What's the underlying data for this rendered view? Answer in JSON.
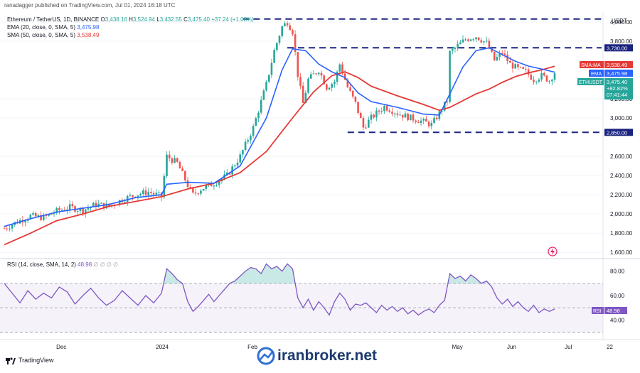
{
  "header": {
    "text": "ranadagger published on TradingView.com, Jul 01, 2024 16:18 UTC"
  },
  "legend": {
    "symbol_line": "Ethereum / TetherUS, 1D, BINANCE",
    "ohlc": {
      "o_label": "O",
      "o": "3,438.16",
      "h_label": "H",
      "h": "3,524.94",
      "l_label": "L",
      "l": "3,432.55",
      "c_label": "C",
      "c": "3,475.40",
      "change": "+37.24 (+1.08%)"
    },
    "ema_text": "EMA (20, close, 0, SMA, 5)",
    "ema_value": "3,475.98",
    "sma_text": "SMA (50, close, 0, SMA, 5)",
    "sma_value": "3,538.49"
  },
  "rsi_legend": {
    "text": "RSI (14, close, SMA, 14, 2)",
    "value": "48.98",
    "extras": "∅ ∅ ∅ ∅"
  },
  "price_axis": {
    "currency": "USDT",
    "ticks": [
      "4,000.00",
      "3,800.00",
      "3,200.00",
      "3,000.00",
      "2,600.00",
      "2,400.00",
      "2,200.00",
      "2,000.00",
      "1,800.00",
      "1,600.00"
    ],
    "tick_values": [
      4000,
      3800,
      3200,
      3000,
      2600,
      2400,
      2200,
      2000,
      1800,
      1600
    ]
  },
  "rsi_axis": {
    "ticks": [
      "80.00",
      "60.00",
      "40.00"
    ],
    "tick_values": [
      80,
      60,
      40
    ]
  },
  "time_axis": {
    "labels": [
      "Dec",
      "2024",
      "Feb",
      "May",
      "Jun",
      "Jul",
      "22"
    ]
  },
  "tags": {
    "resistance": "3,730.00",
    "sma_label": "SMA:MA",
    "sma_value": "3,538.49",
    "ema_label": "EMA",
    "ema_value": "3,475.98",
    "symbol": "ETHUSDT",
    "price": "3,475.40",
    "change": "+82.82%",
    "countdown": "07:41:44",
    "support": "2,850.00",
    "rsi_label": "RSI",
    "rsi_value": "48.98"
  },
  "footer": {
    "tv_logo": "TradingView",
    "watermark": "iranbroker.net"
  },
  "colors": {
    "up": "#26a69a",
    "down": "#ef5350",
    "ema": "#2962ff",
    "sma": "#e53935",
    "rsi": "#7e57c2",
    "level": "#1a237e"
  },
  "chart_data": {
    "type": "candlestick",
    "title": "Ethereum / TetherUS, 1D, BINANCE",
    "ylim": [
      1550,
      4080
    ],
    "horizontal_levels": [
      3730,
      2850
    ],
    "last_price": 3475.4,
    "price_path": [
      [
        0,
        1850
      ],
      [
        5,
        1920
      ],
      [
        10,
        1980
      ],
      [
        15,
        1960
      ],
      [
        20,
        2030
      ],
      [
        25,
        2070
      ],
      [
        30,
        2040
      ],
      [
        35,
        2100
      ],
      [
        40,
        2080
      ],
      [
        45,
        2150
      ],
      [
        50,
        2200
      ],
      [
        55,
        2230
      ],
      [
        60,
        2180
      ],
      [
        62,
        2600
      ],
      [
        66,
        2530
      ],
      [
        70,
        2300
      ],
      [
        72,
        2200
      ],
      [
        75,
        2260
      ],
      [
        80,
        2320
      ],
      [
        85,
        2400
      ],
      [
        90,
        2600
      ],
      [
        95,
        2900
      ],
      [
        100,
        3350
      ],
      [
        103,
        3700
      ],
      [
        106,
        3950
      ],
      [
        108,
        4000
      ],
      [
        110,
        3900
      ],
      [
        112,
        3450
      ],
      [
        114,
        3150
      ],
      [
        116,
        3400
      ],
      [
        120,
        3500
      ],
      [
        123,
        3320
      ],
      [
        126,
        3380
      ],
      [
        128,
        3560
      ],
      [
        131,
        3320
      ],
      [
        134,
        3150
      ],
      [
        137,
        2900
      ],
      [
        140,
        3000
      ],
      [
        145,
        3120
      ],
      [
        150,
        3050
      ],
      [
        155,
        3000
      ],
      [
        160,
        2960
      ],
      [
        163,
        2930
      ],
      [
        166,
        3050
      ],
      [
        169,
        3180
      ],
      [
        170,
        3680
      ],
      [
        173,
        3750
      ],
      [
        176,
        3820
      ],
      [
        180,
        3850
      ],
      [
        184,
        3780
      ],
      [
        187,
        3600
      ],
      [
        190,
        3680
      ],
      [
        193,
        3560
      ],
      [
        196,
        3510
      ],
      [
        199,
        3480
      ],
      [
        202,
        3400
      ],
      [
        205,
        3440
      ],
      [
        208,
        3390
      ],
      [
        210,
        3475
      ]
    ],
    "ema20": [
      [
        0,
        1870
      ],
      [
        10,
        1950
      ],
      [
        20,
        2020
      ],
      [
        30,
        2060
      ],
      [
        40,
        2100
      ],
      [
        50,
        2170
      ],
      [
        60,
        2200
      ],
      [
        62,
        2310
      ],
      [
        70,
        2330
      ],
      [
        80,
        2320
      ],
      [
        90,
        2500
      ],
      [
        100,
        3000
      ],
      [
        106,
        3500
      ],
      [
        110,
        3720
      ],
      [
        115,
        3700
      ],
      [
        120,
        3560
      ],
      [
        125,
        3480
      ],
      [
        130,
        3420
      ],
      [
        135,
        3260
      ],
      [
        140,
        3170
      ],
      [
        150,
        3110
      ],
      [
        160,
        3040
      ],
      [
        166,
        3030
      ],
      [
        170,
        3250
      ],
      [
        175,
        3530
      ],
      [
        180,
        3700
      ],
      [
        185,
        3730
      ],
      [
        190,
        3660
      ],
      [
        195,
        3590
      ],
      [
        200,
        3540
      ],
      [
        205,
        3510
      ],
      [
        210,
        3476
      ]
    ],
    "sma50": [
      [
        0,
        1680
      ],
      [
        10,
        1800
      ],
      [
        20,
        1930
      ],
      [
        30,
        2000
      ],
      [
        40,
        2080
      ],
      [
        50,
        2130
      ],
      [
        60,
        2180
      ],
      [
        70,
        2260
      ],
      [
        80,
        2320
      ],
      [
        90,
        2430
      ],
      [
        100,
        2650
      ],
      [
        110,
        3000
      ],
      [
        118,
        3270
      ],
      [
        125,
        3440
      ],
      [
        130,
        3480
      ],
      [
        135,
        3420
      ],
      [
        140,
        3330
      ],
      [
        150,
        3230
      ],
      [
        160,
        3140
      ],
      [
        166,
        3080
      ],
      [
        170,
        3110
      ],
      [
        180,
        3250
      ],
      [
        185,
        3300
      ],
      [
        190,
        3370
      ],
      [
        195,
        3430
      ],
      [
        200,
        3470
      ],
      [
        205,
        3500
      ],
      [
        210,
        3538
      ]
    ],
    "rsi_ylim": [
      25,
      88
    ],
    "rsi_overbought": 70,
    "rsi_oversold": 30,
    "rsi_mid": 50,
    "rsi": [
      [
        0,
        70
      ],
      [
        3,
        62
      ],
      [
        6,
        54
      ],
      [
        9,
        64
      ],
      [
        12,
        57
      ],
      [
        15,
        62
      ],
      [
        18,
        58
      ],
      [
        21,
        67
      ],
      [
        24,
        63
      ],
      [
        27,
        53
      ],
      [
        30,
        60
      ],
      [
        33,
        66
      ],
      [
        36,
        58
      ],
      [
        39,
        52
      ],
      [
        42,
        56
      ],
      [
        45,
        64
      ],
      [
        48,
        58
      ],
      [
        51,
        52
      ],
      [
        54,
        60
      ],
      [
        57,
        54
      ],
      [
        60,
        62
      ],
      [
        62,
        82
      ],
      [
        64,
        78
      ],
      [
        66,
        73
      ],
      [
        68,
        70
      ],
      [
        70,
        55
      ],
      [
        72,
        47
      ],
      [
        74,
        51
      ],
      [
        76,
        56
      ],
      [
        78,
        61
      ],
      [
        80,
        55
      ],
      [
        82,
        60
      ],
      [
        84,
        65
      ],
      [
        86,
        70
      ],
      [
        88,
        72
      ],
      [
        90,
        76
      ],
      [
        92,
        80
      ],
      [
        94,
        83
      ],
      [
        96,
        82
      ],
      [
        98,
        78
      ],
      [
        100,
        86
      ],
      [
        102,
        82
      ],
      [
        104,
        84
      ],
      [
        106,
        80
      ],
      [
        108,
        86
      ],
      [
        110,
        82
      ],
      [
        112,
        58
      ],
      [
        114,
        50
      ],
      [
        116,
        57
      ],
      [
        118,
        48
      ],
      [
        120,
        55
      ],
      [
        122,
        50
      ],
      [
        124,
        44
      ],
      [
        126,
        55
      ],
      [
        128,
        62
      ],
      [
        130,
        57
      ],
      [
        132,
        48
      ],
      [
        134,
        53
      ],
      [
        136,
        52
      ],
      [
        138,
        54
      ],
      [
        140,
        50
      ],
      [
        142,
        46
      ],
      [
        144,
        52
      ],
      [
        146,
        48
      ],
      [
        148,
        51
      ],
      [
        150,
        47
      ],
      [
        152,
        50
      ],
      [
        154,
        45
      ],
      [
        156,
        48
      ],
      [
        158,
        44
      ],
      [
        160,
        47
      ],
      [
        162,
        49
      ],
      [
        164,
        46
      ],
      [
        166,
        52
      ],
      [
        168,
        56
      ],
      [
        170,
        78
      ],
      [
        172,
        74
      ],
      [
        174,
        76
      ],
      [
        176,
        72
      ],
      [
        178,
        77
      ],
      [
        180,
        74
      ],
      [
        182,
        70
      ],
      [
        184,
        72
      ],
      [
        186,
        67
      ],
      [
        188,
        58
      ],
      [
        190,
        53
      ],
      [
        192,
        57
      ],
      [
        194,
        51
      ],
      [
        196,
        55
      ],
      [
        198,
        50
      ],
      [
        200,
        47
      ],
      [
        202,
        52
      ],
      [
        204,
        46
      ],
      [
        206,
        49
      ],
      [
        208,
        47
      ],
      [
        210,
        49
      ]
    ],
    "rsi_last": 48.98,
    "x_labels": [
      "Dec",
      "2024",
      "Feb",
      "May",
      "Jun",
      "Jul",
      "22"
    ]
  }
}
